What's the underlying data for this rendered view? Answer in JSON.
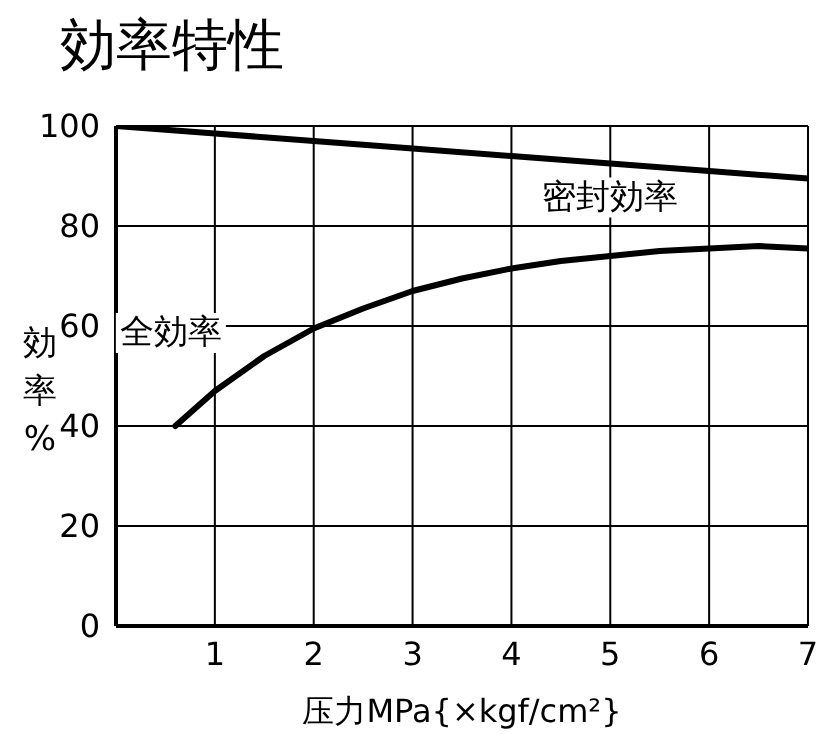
{
  "chart_data": {
    "type": "line",
    "title": "効率特性",
    "xlabel": "压力MPa{×kgf/cm²}",
    "ylabel": "効率%",
    "xlim": [
      0,
      7
    ],
    "xticks": [
      1,
      2,
      3,
      4,
      5,
      6,
      7
    ],
    "ylim": [
      0,
      100
    ],
    "yticks": [
      0,
      20,
      40,
      60,
      80,
      100
    ],
    "grid": true,
    "legend": false,
    "marker": "none",
    "line_style": "solid",
    "series": [
      {
        "name": "密封効率",
        "color": "#000000",
        "x": [
          0,
          1,
          2,
          3,
          4,
          5,
          6,
          7
        ],
        "values": [
          100,
          98.5,
          97,
          95.5,
          94,
          92.5,
          91,
          89.5
        ]
      },
      {
        "name": "全効率",
        "color": "#000000",
        "x": [
          0.6,
          1,
          1.5,
          2,
          2.5,
          3,
          3.5,
          4,
          4.5,
          5,
          5.5,
          6,
          6.5,
          7
        ],
        "values": [
          40,
          47,
          54,
          59.5,
          63.5,
          67,
          69.5,
          71.5,
          73,
          74,
          75,
          75.5,
          76,
          75.5
        ]
      }
    ]
  }
}
